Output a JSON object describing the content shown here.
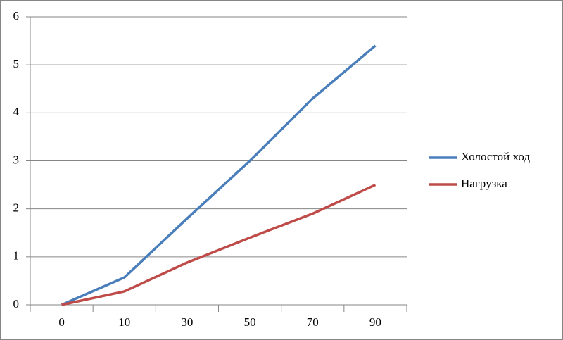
{
  "chart_data": {
    "type": "line",
    "categories": [
      "0",
      "10",
      "30",
      "50",
      "70",
      "90"
    ],
    "series": [
      {
        "name": "Холостой ход",
        "color": "#4a7ebb",
        "values": [
          0,
          0.57,
          1.8,
          3.0,
          4.3,
          5.4
        ]
      },
      {
        "name": "Нагрузка",
        "color": "#be4b48",
        "values": [
          0,
          0.28,
          0.88,
          1.4,
          1.9,
          2.5
        ]
      }
    ],
    "ylim": [
      0,
      6
    ],
    "yticks": [
      0,
      1,
      2,
      3,
      4,
      5,
      6
    ],
    "grid": true,
    "legend": "right"
  }
}
